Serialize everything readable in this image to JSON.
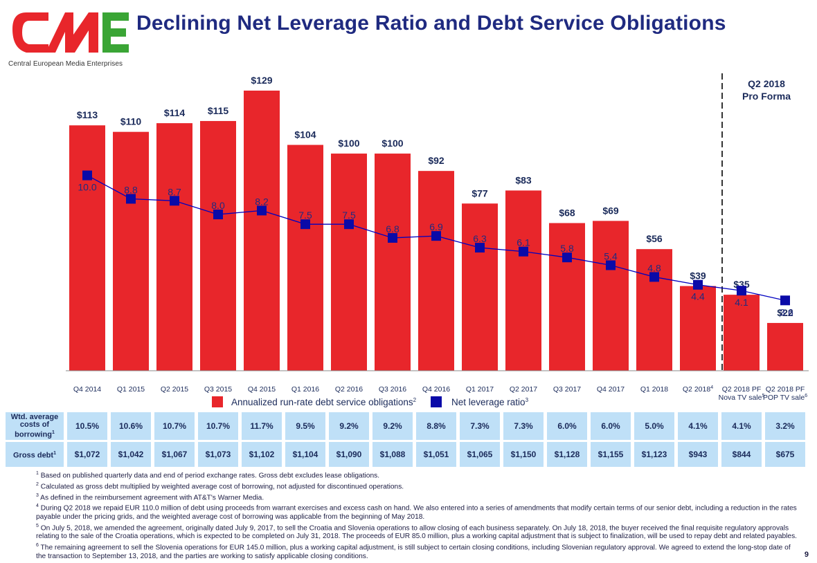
{
  "header": {
    "title": "Declining Net Leverage Ratio and Debt Service Obligations",
    "logo_text": "CME",
    "logo_subtitle": "Central European Media Enterprises"
  },
  "colors": {
    "bar": "#e8262b",
    "line": "#0000c0",
    "title": "#1f2a80",
    "table_bg": "#bfe0f7"
  },
  "chart_data": {
    "type": "bar",
    "categories": [
      "Q4 2014",
      "Q1 2015",
      "Q2 2015",
      "Q3 2015",
      "Q4 2015",
      "Q1 2016",
      "Q2 2016",
      "Q3 2016",
      "Q4 2016",
      "Q1 2017",
      "Q2 2017",
      "Q3 2017",
      "Q4 2017",
      "Q1 2018",
      "Q2 2018",
      "Q2 2018 PF\nNova TV sale",
      "Q2 2018 PF\nPOP TV sale"
    ],
    "category_sup": [
      "",
      "",
      "",
      "",
      "",
      "",
      "",
      "",
      "",
      "",
      "",
      "",
      "",
      "",
      "4",
      "5",
      "6"
    ],
    "series": [
      {
        "name": "Annualized run-rate debt service obligations",
        "name_sup": "2",
        "type": "bar",
        "values": [
          113,
          110,
          114,
          115,
          129,
          104,
          100,
          100,
          92,
          77,
          83,
          68,
          69,
          56,
          39,
          35,
          22
        ],
        "labels": [
          "$113",
          "$110",
          "$114",
          "$115",
          "$129",
          "$104",
          "$100",
          "$100",
          "$92",
          "$77",
          "$83",
          "$68",
          "$69",
          "$56",
          "$39",
          "$35",
          "$22"
        ]
      },
      {
        "name": "Net leverage ratio",
        "name_sup": "3",
        "type": "line",
        "values": [
          10.0,
          8.8,
          8.7,
          8.0,
          8.2,
          7.5,
          7.5,
          6.8,
          6.9,
          6.3,
          6.1,
          5.8,
          5.4,
          4.8,
          4.4,
          4.1,
          3.6
        ],
        "labels": [
          "10.0",
          "8.8",
          "8.7",
          "8.0",
          "8.2",
          "7.5",
          "7.5",
          "6.8",
          "6.9",
          "6.3",
          "6.1",
          "5.8",
          "5.4",
          "4.8",
          "4.4",
          "4.1",
          "3.6"
        ]
      }
    ],
    "ylim_bar": [
      0,
      140
    ],
    "ylim_line": [
      0,
      16.5
    ],
    "annotation": "Q2 2018\nPro Forma",
    "legend_position": "bottom"
  },
  "table": {
    "rows": [
      {
        "label": "Wtd. average costs of borrowing",
        "label_sup": "1",
        "values": [
          "10.5%",
          "10.6%",
          "10.7%",
          "10.7%",
          "11.7%",
          "9.5%",
          "9.2%",
          "9.2%",
          "8.8%",
          "7.3%",
          "7.3%",
          "6.0%",
          "6.0%",
          "5.0%",
          "4.1%",
          "4.1%",
          "3.2%"
        ]
      },
      {
        "label": "Gross debt",
        "label_sup": "1",
        "values": [
          "$1,072",
          "$1,042",
          "$1,067",
          "$1,073",
          "$1,102",
          "$1,104",
          "$1,090",
          "$1,088",
          "$1,051",
          "$1,065",
          "$1,150",
          "$1,128",
          "$1,155",
          "$1,123",
          "$943",
          "$844",
          "$675"
        ]
      }
    ]
  },
  "footnotes": [
    {
      "num": "1",
      "text": "Based on published quarterly data and end of period exchange rates. Gross debt excludes lease obligations."
    },
    {
      "num": "2",
      "text": "Calculated as gross debt multiplied by weighted average cost of borrowing, not adjusted for discontinued operations."
    },
    {
      "num": "3",
      "text": "As defined in the reimbursement agreement with AT&T's Warner Media."
    },
    {
      "num": "4",
      "text": "During Q2 2018 we repaid EUR 110.0 million of debt using proceeds from warrant exercises and excess cash on hand.  We also entered into a series of amendments that modify certain terms of our senior debt, including a reduction in the rates payable under the pricing grids, and the weighted average cost of borrowing was applicable from the beginning of May 2018."
    },
    {
      "num": "5",
      "text": "On July 5, 2018, we amended the agreement, originally dated July 9, 2017, to sell the Croatia and Slovenia operations to allow closing of each business separately.  On July 18, 2018, the buyer received the final requisite regulatory approvals relating to the sale of the Croatia operations, which is expected to be completed on July 31, 2018.  The proceeds of EUR 85.0 million, plus a working capital adjustment that is subject to finalization, will be used to repay debt and related payables."
    },
    {
      "num": "6",
      "text": "The remaining agreement to sell the Slovenia operations for EUR 145.0 million, plus a working capital adjustment, is still subject to certain closing conditions, including Slovenian regulatory approval.  We agreed to extend the long-stop date of the transaction to September 13, 2018, and the parties are working to satisfy applicable closing conditions."
    }
  ],
  "page_number": "9"
}
